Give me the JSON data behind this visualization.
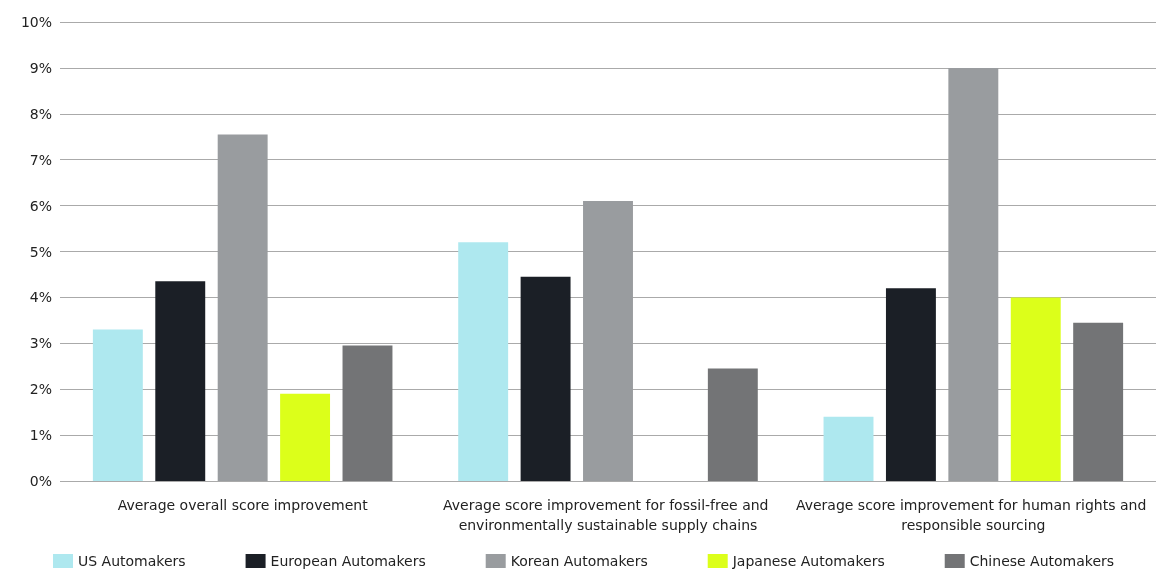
{
  "chart_data": {
    "type": "bar",
    "categories": [
      "Average overall score improvement",
      "Average score improvement for fossil-free and environmentally sustainable supply chains",
      "Average score improvement for human rights and responsible sourcing"
    ],
    "series": [
      {
        "name": "US Automakers",
        "color": "#aee8ef",
        "values": [
          3.3,
          5.2,
          1.4
        ]
      },
      {
        "name": "European Automakers",
        "color": "#1b1f26",
        "values": [
          4.35,
          4.45,
          4.2
        ]
      },
      {
        "name": "Korean Automakers",
        "color": "#999c9f",
        "values": [
          7.55,
          6.1,
          9.0
        ]
      },
      {
        "name": "Japanese Automakers",
        "color": "#dcff1a",
        "values": [
          1.9,
          null,
          4.0
        ]
      },
      {
        "name": "Chinese Automakers",
        "color": "#737476",
        "values": [
          2.95,
          2.45,
          3.45
        ]
      }
    ],
    "ylim": [
      0,
      10
    ],
    "yticks": [
      {
        "value": 0,
        "label": "0%"
      },
      {
        "value": 1,
        "label": "1%"
      },
      {
        "value": 2,
        "label": "2%"
      },
      {
        "value": 3,
        "label": "3%"
      },
      {
        "value": 4,
        "label": "4%"
      },
      {
        "value": 5,
        "label": "5%"
      },
      {
        "value": 6,
        "label": "6%"
      },
      {
        "value": 7,
        "label": "7%"
      },
      {
        "value": 8,
        "label": "8%"
      },
      {
        "value": 9,
        "label": "9%"
      },
      {
        "value": 10,
        "label": "10%"
      }
    ],
    "grid": "y",
    "legend": "bottom"
  }
}
